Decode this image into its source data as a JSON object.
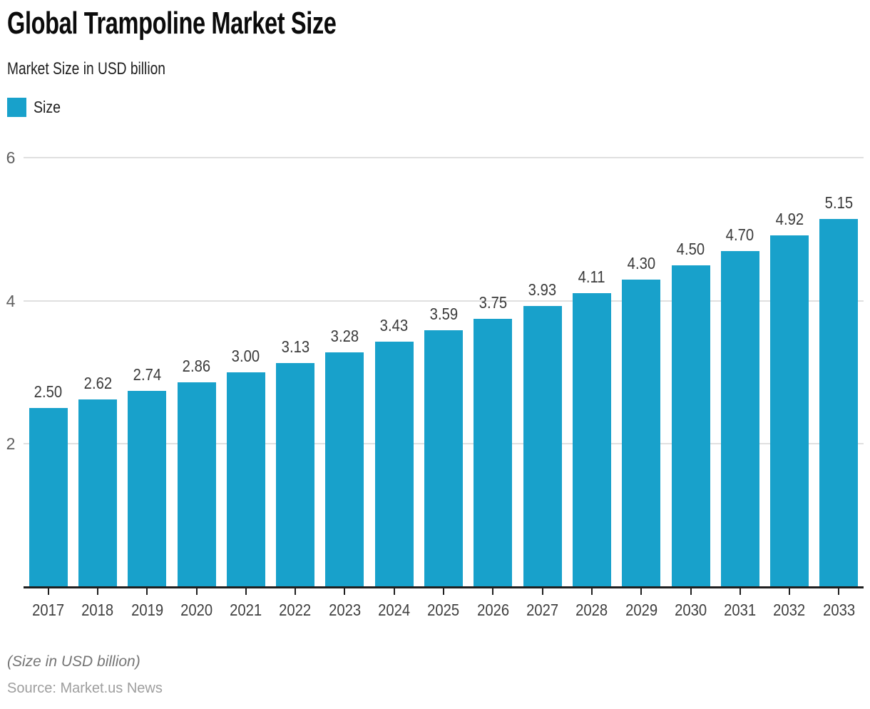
{
  "header": {
    "title": "Global Trampoline Market Size",
    "subtitle": "Market Size in USD billion"
  },
  "legend": {
    "label": "Size"
  },
  "colors": {
    "bar": "#18A1CB",
    "grid": "#E0E0E0",
    "axis": "#1F1F1F",
    "value_label": "#3A3A3A",
    "x_label": "#404040",
    "y_label": "#5F5F5F"
  },
  "chart_data": {
    "type": "bar",
    "title": "Global Trampoline Market Size",
    "subtitle": "Market Size in USD billion",
    "series_name": "Size",
    "categories": [
      "2017",
      "2018",
      "2019",
      "2020",
      "2021",
      "2022",
      "2023",
      "2024",
      "2025",
      "2026",
      "2027",
      "2028",
      "2029",
      "2030",
      "2031",
      "2032",
      "2033"
    ],
    "values": [
      2.5,
      2.62,
      2.74,
      2.86,
      3.0,
      3.13,
      3.28,
      3.43,
      3.59,
      3.75,
      3.93,
      4.11,
      4.3,
      4.5,
      4.7,
      4.92,
      5.15
    ],
    "value_labels": [
      "2.50",
      "2.62",
      "2.74",
      "2.86",
      "3.00",
      "3.13",
      "3.28",
      "3.43",
      "3.59",
      "3.75",
      "3.93",
      "4.11",
      "4.30",
      "4.50",
      "4.70",
      "4.92",
      "5.15"
    ],
    "xlabel": "",
    "ylabel": "Market Size in USD billion",
    "ylim": [
      0,
      6
    ],
    "yticks": [
      2,
      4,
      6
    ],
    "grid": true,
    "legend_position": "top-left",
    "bar_color": "#18A1CB"
  },
  "footer": {
    "note": "(Size in USD billion)",
    "source": "Source: Market.us News"
  }
}
